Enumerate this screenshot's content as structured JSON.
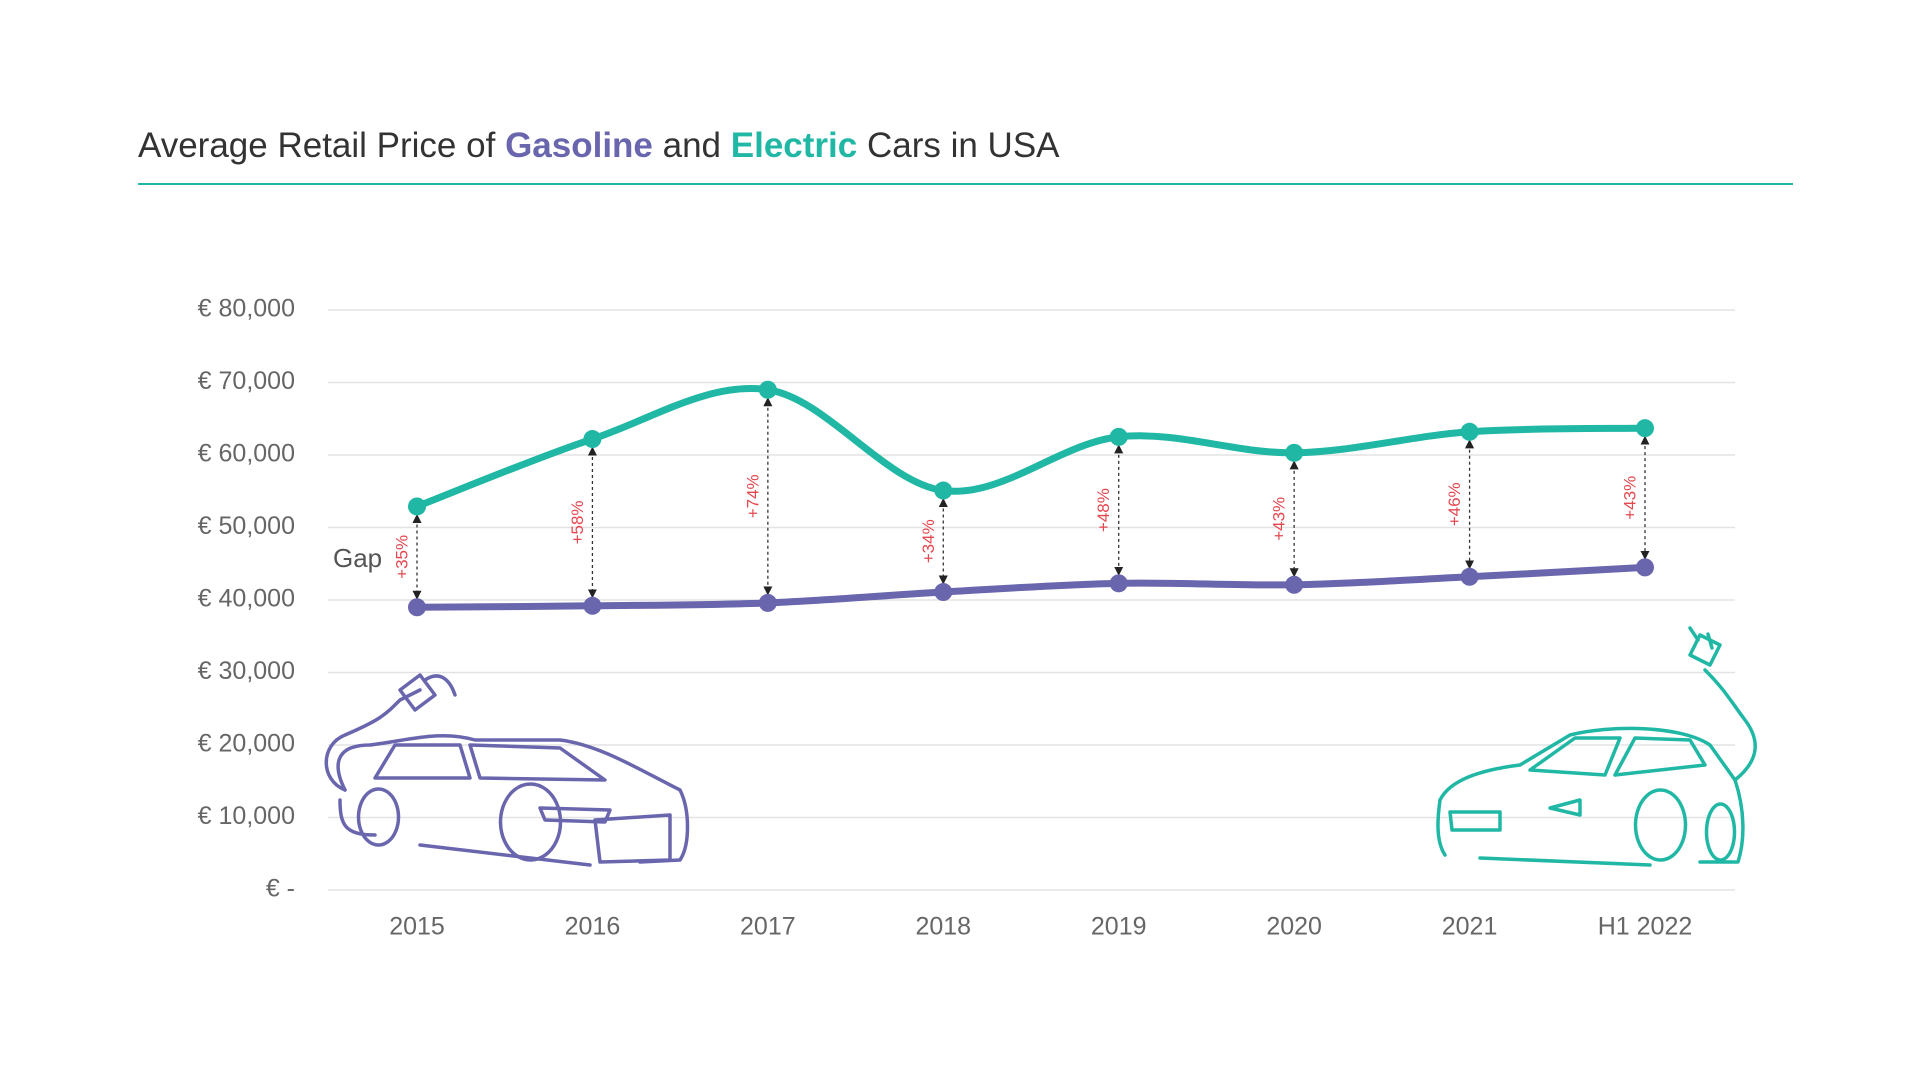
{
  "chart_data": {
    "type": "line",
    "title_parts": [
      "Average Retail Price of",
      "and",
      "Cars in USA"
    ],
    "categories": [
      "2015",
      "2016",
      "2017",
      "2018",
      "2019",
      "2020",
      "2021",
      "H1 2022"
    ],
    "series": [
      {
        "name": "Gasoline",
        "color": "#6a66ae",
        "values": [
          39000,
          39200,
          39600,
          41100,
          42300,
          42100,
          43200,
          44500
        ]
      },
      {
        "name": "Electric",
        "color": "#20b8a5",
        "values": [
          52900,
          62200,
          69000,
          55100,
          62500,
          60300,
          63200,
          63700
        ]
      }
    ],
    "gap": {
      "name": "Gap",
      "color": "#e5474f",
      "values": [
        35,
        58,
        74,
        34,
        48,
        43,
        46,
        43
      ],
      "value_labels": [
        "+35%",
        "+58%",
        "+74%",
        "+34%",
        "+48%",
        "+43%",
        "+46%",
        "+43%"
      ]
    },
    "ylim": [
      0,
      80000
    ],
    "yticks": [
      {
        "value": 0,
        "label": "€ -"
      },
      {
        "value": 10000,
        "label": "€ 10,000"
      },
      {
        "value": 20000,
        "label": "€ 20,000"
      },
      {
        "value": 30000,
        "label": "€ 30,000"
      },
      {
        "value": 40000,
        "label": "€ 40,000"
      },
      {
        "value": 50000,
        "label": "€ 50,000"
      },
      {
        "value": 60000,
        "label": "€ 60,000"
      },
      {
        "value": 70000,
        "label": "€ 70,000"
      },
      {
        "value": 80000,
        "label": "€ 80,000"
      }
    ],
    "grid": true
  }
}
